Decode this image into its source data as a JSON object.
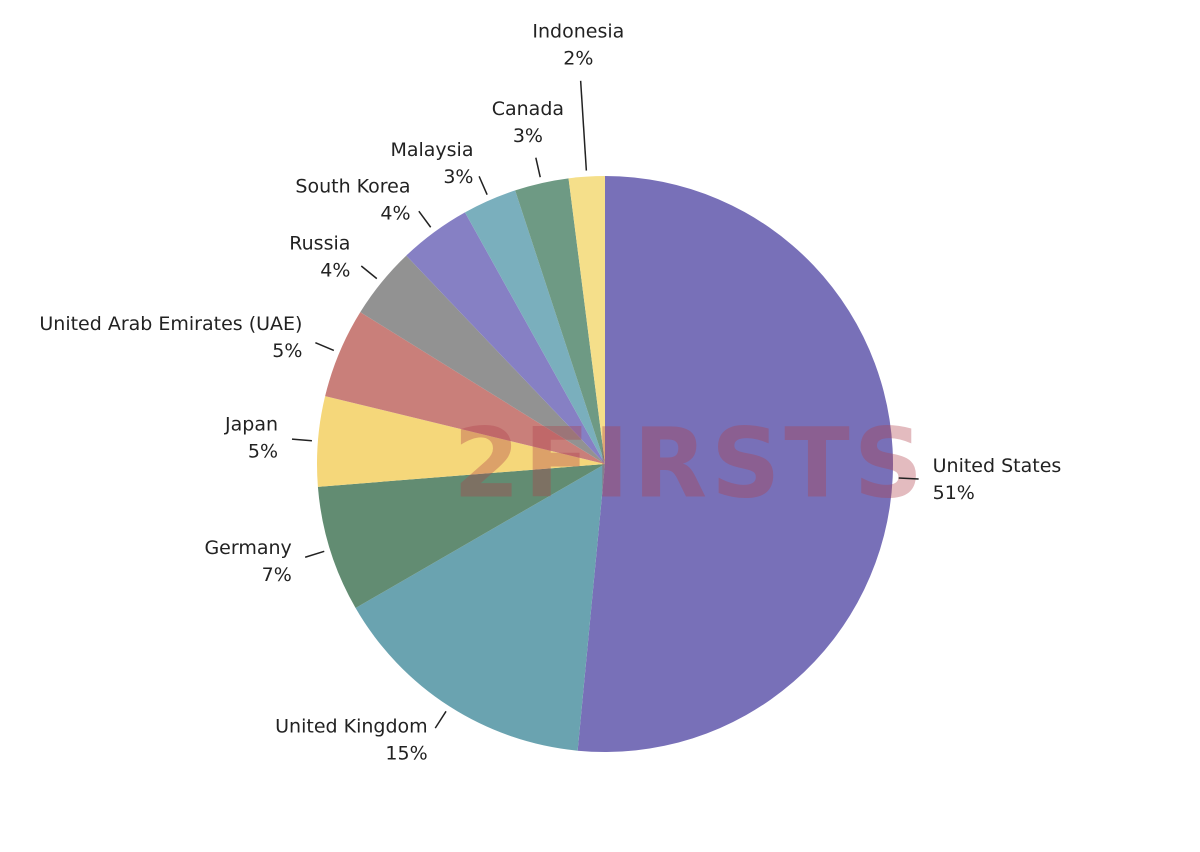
{
  "chart_data": {
    "type": "pie",
    "categories": [
      "United States",
      "United Kingdom",
      "Germany",
      "Japan",
      "United Arab Emirates (UAE)",
      "Russia",
      "South Korea",
      "Malaysia",
      "Canada",
      "Indonesia"
    ],
    "values": [
      51,
      15,
      7,
      5,
      5,
      4,
      4,
      3,
      3,
      2
    ],
    "value_labels": [
      "51%",
      "15%",
      "7%",
      "5%",
      "5%",
      "4%",
      "4%",
      "3%",
      "3%",
      "2%"
    ],
    "colors": [
      "#7870b8",
      "#6aa3b0",
      "#628c72",
      "#f5d77a",
      "#c97f7a",
      "#929292",
      "#8680c4",
      "#7aafbd",
      "#6e9a84",
      "#f5df8a"
    ],
    "watermark": "2FIRSTS"
  }
}
